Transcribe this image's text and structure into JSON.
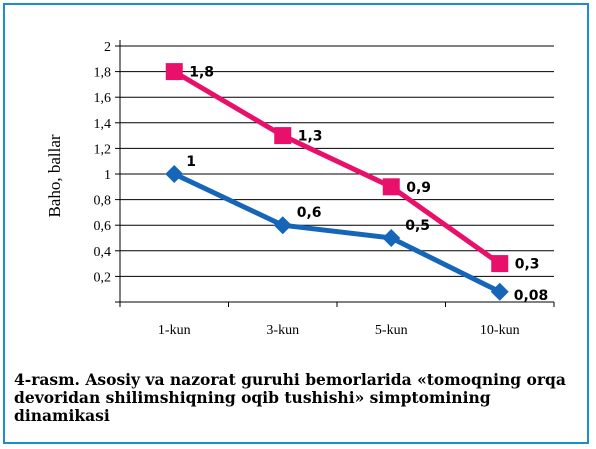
{
  "chart_data": {
    "type": "line",
    "categories": [
      "1-kun",
      "3-kun",
      "5-kun",
      "10-kun"
    ],
    "series": [
      {
        "values": [
          1.8,
          1.3,
          0.9,
          0.3
        ],
        "labels": [
          "1,8",
          "1,3",
          "0,9",
          "0,3"
        ],
        "color": "#e8106a",
        "marker": "square"
      },
      {
        "values": [
          1,
          0.6,
          0.5,
          0.08
        ],
        "labels": [
          "1",
          "0,6",
          "0,5",
          "0,08"
        ],
        "color": "#1565b8",
        "marker": "diamond"
      }
    ],
    "title": "",
    "xlabel": "",
    "ylabel": "Baho, ballar",
    "ylim": [
      0,
      2
    ],
    "yticks": [
      "",
      "0,2",
      "0,4",
      "0,6",
      "0,8",
      "1",
      "1,2",
      "1,4",
      "1,6",
      "1,8",
      "2"
    ],
    "grid": true,
    "legend": "none"
  },
  "caption": "4-rasm. Asosiy va nazorat guruhi bemorlarida «tomoqning orqa devoridan shilimshiqning oqib tushishi» simptomining dinamikasi",
  "colors": {
    "frame": "#1a8fd0"
  }
}
